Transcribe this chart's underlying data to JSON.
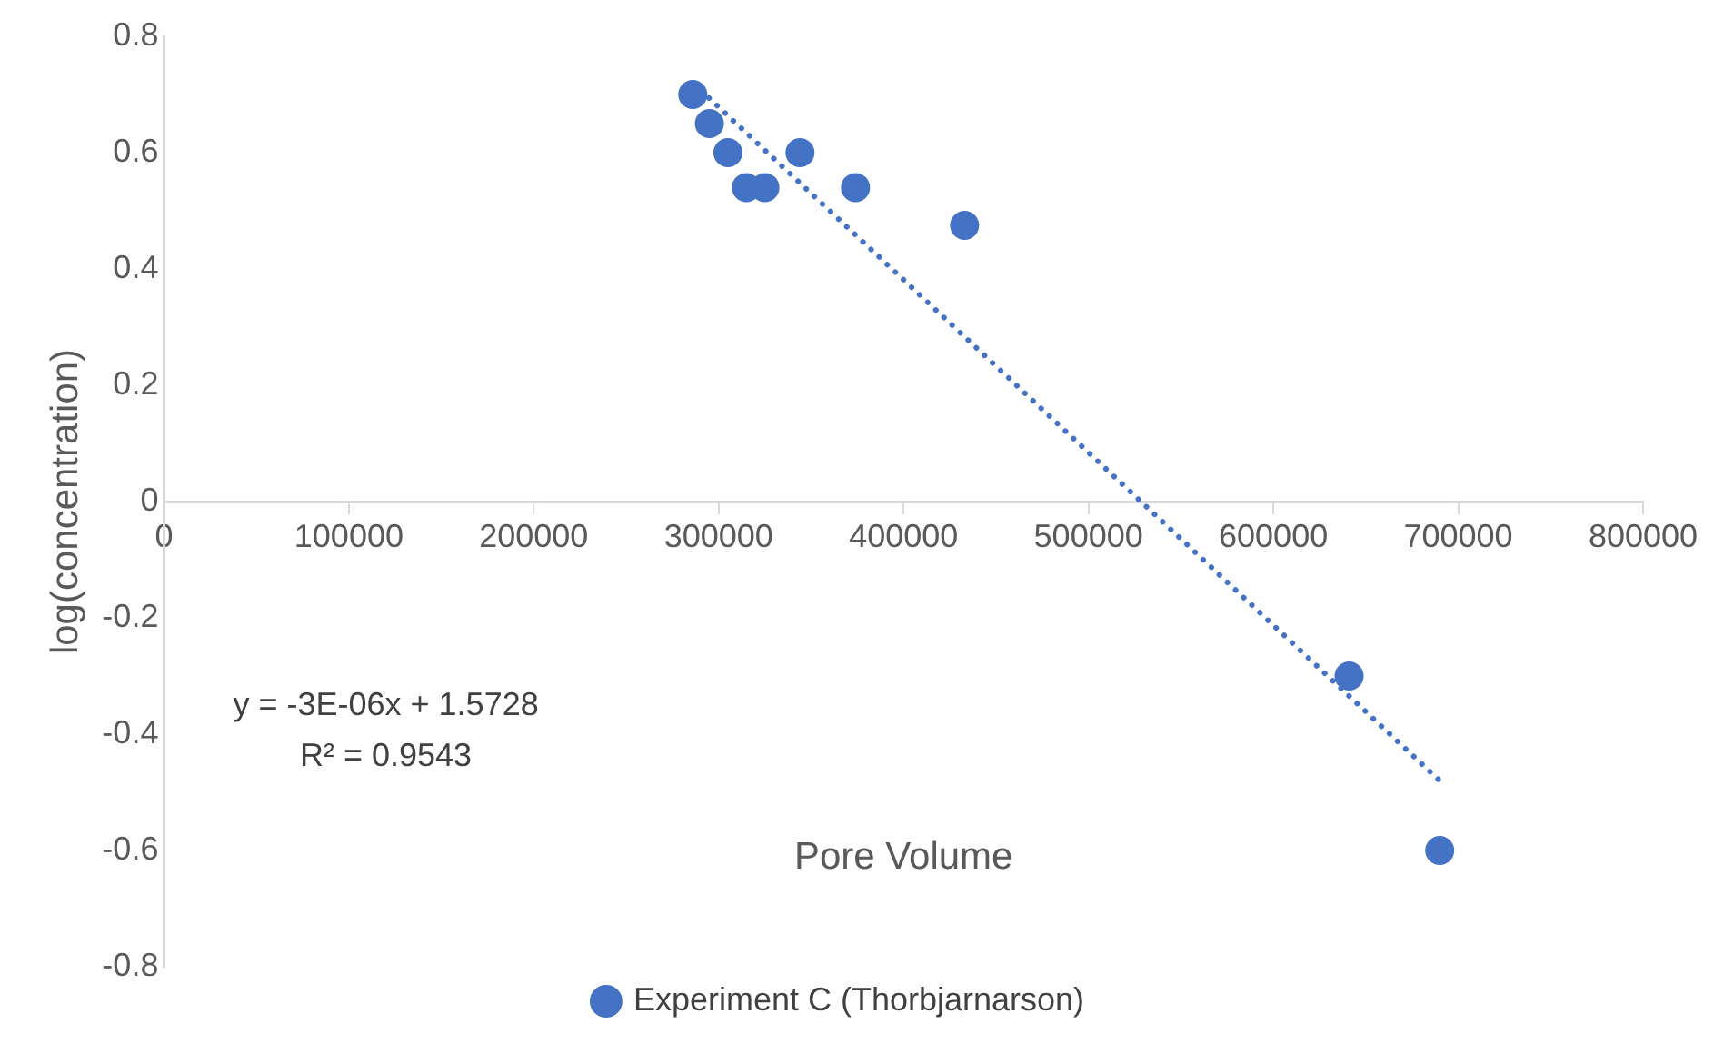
{
  "chart_data": {
    "type": "scatter",
    "xlabel": "Pore Volume",
    "ylabel": "log(concentration)",
    "series": [
      {
        "name": "Experiment C (Thorbjarnarson)",
        "color": "#4472c4",
        "type": "scatter",
        "marker": "circle",
        "x": [
          286000,
          295000,
          305000,
          315000,
          325000,
          344000,
          374000,
          433000,
          641000,
          690000
        ],
        "values": [
          0.7,
          0.65,
          0.6,
          0.54,
          0.54,
          0.6,
          0.54,
          0.475,
          -0.3,
          -0.6
        ]
      },
      {
        "color": "#4472c4",
        "type": "line",
        "line_style": "dotted",
        "marker": "none",
        "x": [
          286000,
          690000
        ],
        "values": [
          0.72,
          -0.48
        ]
      }
    ],
    "xlim": [
      0,
      800000
    ],
    "xticks": [
      0,
      100000,
      200000,
      300000,
      400000,
      500000,
      600000,
      700000,
      800000
    ],
    "ylim": [
      -0.8,
      0.8
    ],
    "yticks": [
      -0.8,
      -0.6,
      -0.4,
      -0.2,
      0,
      0.2,
      0.4,
      0.6,
      0.8
    ],
    "grid": false,
    "legend": "bottom",
    "annotations": [
      "y = -3E-06x + 1.5728",
      "R² = 0.9543"
    ]
  }
}
